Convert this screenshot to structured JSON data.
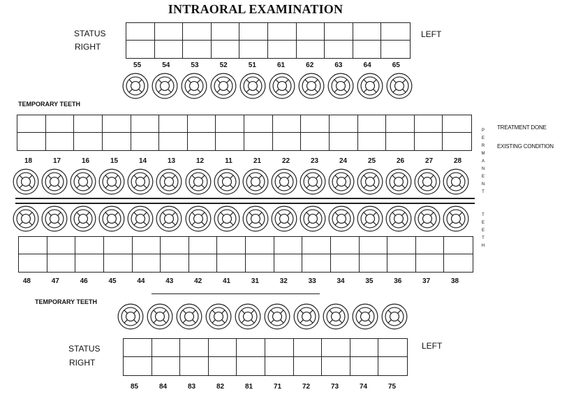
{
  "title": "INTRAORAL EXAMINATION",
  "labels": {
    "status": "STATUS",
    "right": "RIGHT",
    "left": "LEFT",
    "temporary_teeth": "TEMPORARY TEETH",
    "treatment_done": "TREATMENT DONE",
    "existing_condition": "EXISTING CONDITION",
    "permanent_teeth_vertical": "PERMANENT TEETH"
  },
  "upper_temporary": [
    "55",
    "54",
    "53",
    "52",
    "51",
    "61",
    "62",
    "63",
    "64",
    "65"
  ],
  "upper_permanent": [
    "18",
    "17",
    "16",
    "15",
    "14",
    "13",
    "12",
    "11",
    "21",
    "22",
    "23",
    "24",
    "25",
    "26",
    "27",
    "28"
  ],
  "lower_permanent": [
    "48",
    "47",
    "46",
    "45",
    "44",
    "43",
    "42",
    "41",
    "31",
    "32",
    "33",
    "34",
    "35",
    "36",
    "37",
    "38"
  ],
  "lower_temporary": [
    "85",
    "84",
    "83",
    "82",
    "81",
    "71",
    "72",
    "73",
    "74",
    "75"
  ],
  "icons": {
    "tooth": "tooth-diagram-icon"
  }
}
